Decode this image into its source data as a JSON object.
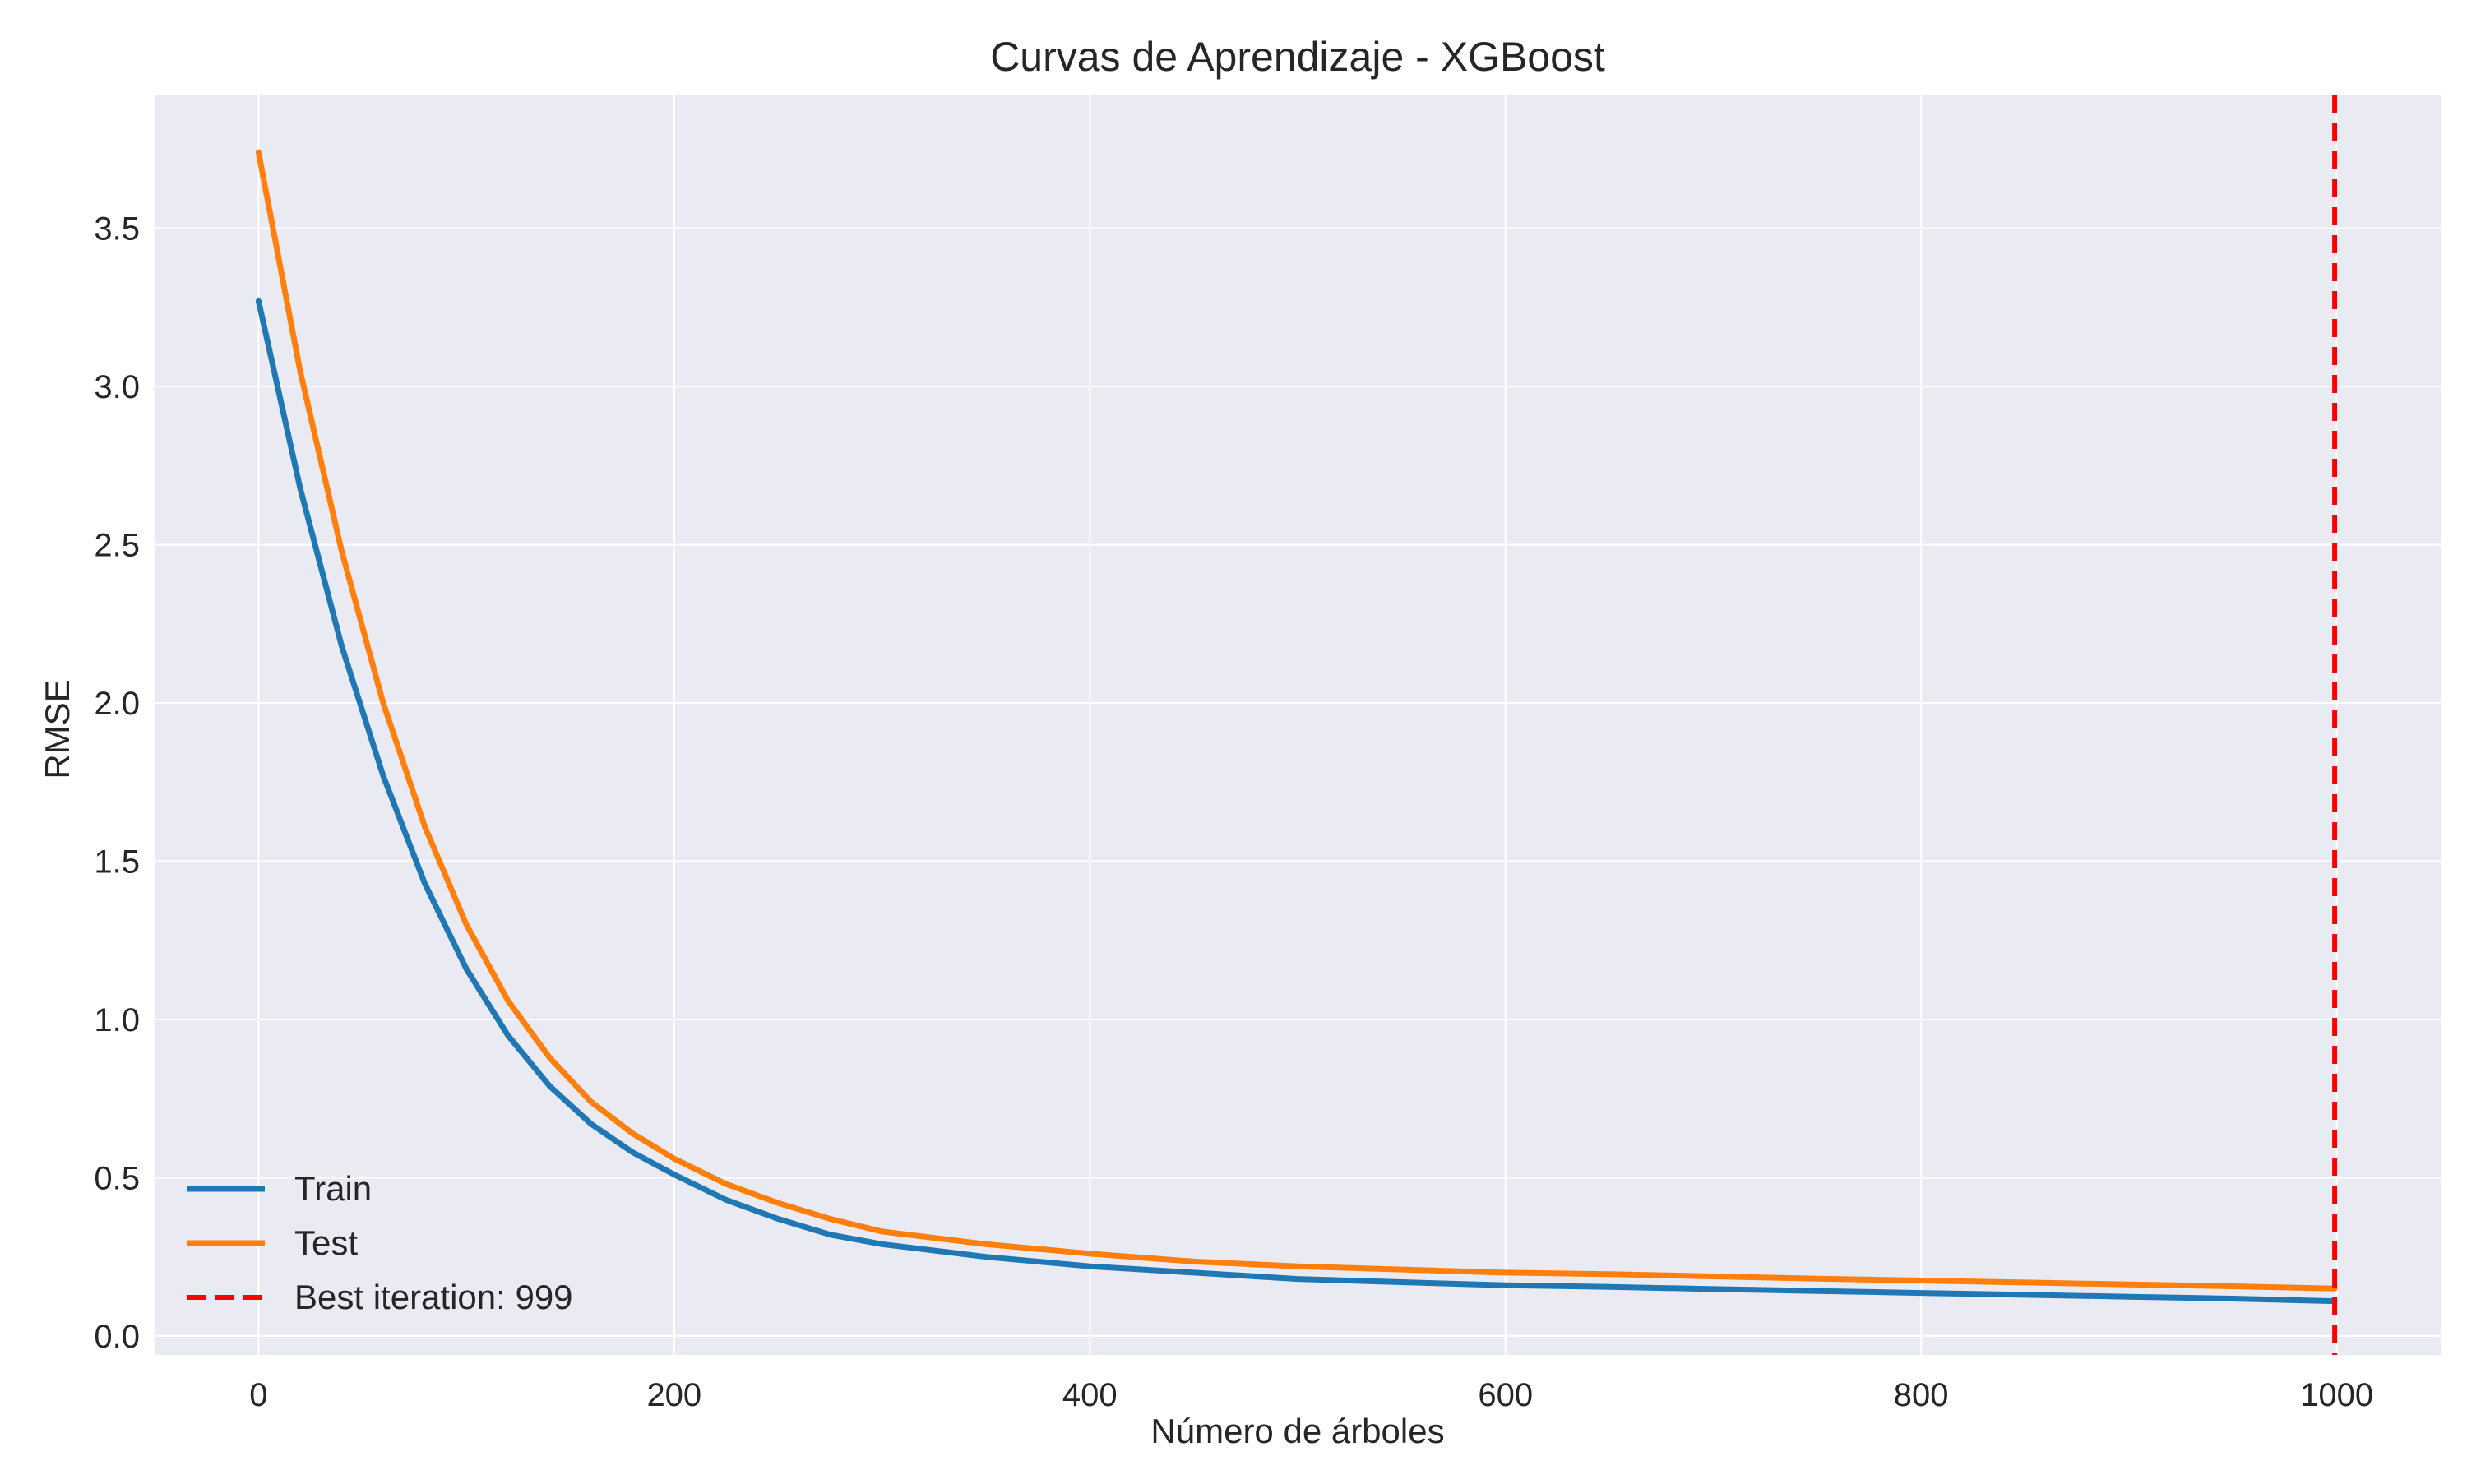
{
  "chart_data": {
    "type": "line",
    "title": "Curvas de Aprendizaje - XGBoost",
    "xlabel": "Número de árboles",
    "ylabel": "RMSE",
    "xlim": [
      -50,
      1050
    ],
    "ylim": [
      -0.06,
      3.92
    ],
    "x_ticks": [
      0,
      200,
      400,
      600,
      800,
      1000
    ],
    "y_ticks": [
      0.0,
      0.5,
      1.0,
      1.5,
      2.0,
      2.5,
      3.0,
      3.5
    ],
    "x_tick_labels": [
      "0",
      "200",
      "400",
      "600",
      "800",
      "1000"
    ],
    "y_tick_labels": [
      "0.0",
      "0.5",
      "1.0",
      "1.5",
      "2.0",
      "2.5",
      "3.0",
      "3.5"
    ],
    "grid": true,
    "legend_position": "lower-left",
    "background": "#eaeaf2",
    "x": [
      0,
      20,
      40,
      60,
      80,
      100,
      120,
      140,
      160,
      180,
      200,
      225,
      250,
      275,
      300,
      350,
      400,
      450,
      500,
      550,
      600,
      650,
      700,
      750,
      800,
      850,
      900,
      950,
      999
    ],
    "series": [
      {
        "name": "Train",
        "color": "#1f77b4",
        "values": [
          3.27,
          2.68,
          2.18,
          1.77,
          1.43,
          1.16,
          0.95,
          0.79,
          0.67,
          0.58,
          0.51,
          0.43,
          0.37,
          0.32,
          0.29,
          0.25,
          0.22,
          0.2,
          0.18,
          0.17,
          0.16,
          0.155,
          0.148,
          0.142,
          0.136,
          0.13,
          0.124,
          0.118,
          0.11
        ]
      },
      {
        "name": "Test",
        "color": "#ff7f0e",
        "values": [
          3.74,
          3.05,
          2.48,
          2.0,
          1.61,
          1.3,
          1.06,
          0.88,
          0.74,
          0.64,
          0.56,
          0.48,
          0.42,
          0.37,
          0.33,
          0.29,
          0.26,
          0.235,
          0.22,
          0.21,
          0.2,
          0.195,
          0.188,
          0.181,
          0.175,
          0.169,
          0.163,
          0.157,
          0.15
        ]
      }
    ],
    "vlines": [
      {
        "name": "Best iteration: 999",
        "x": 999,
        "color": "#ff0000",
        "style": "dashed"
      }
    ]
  }
}
